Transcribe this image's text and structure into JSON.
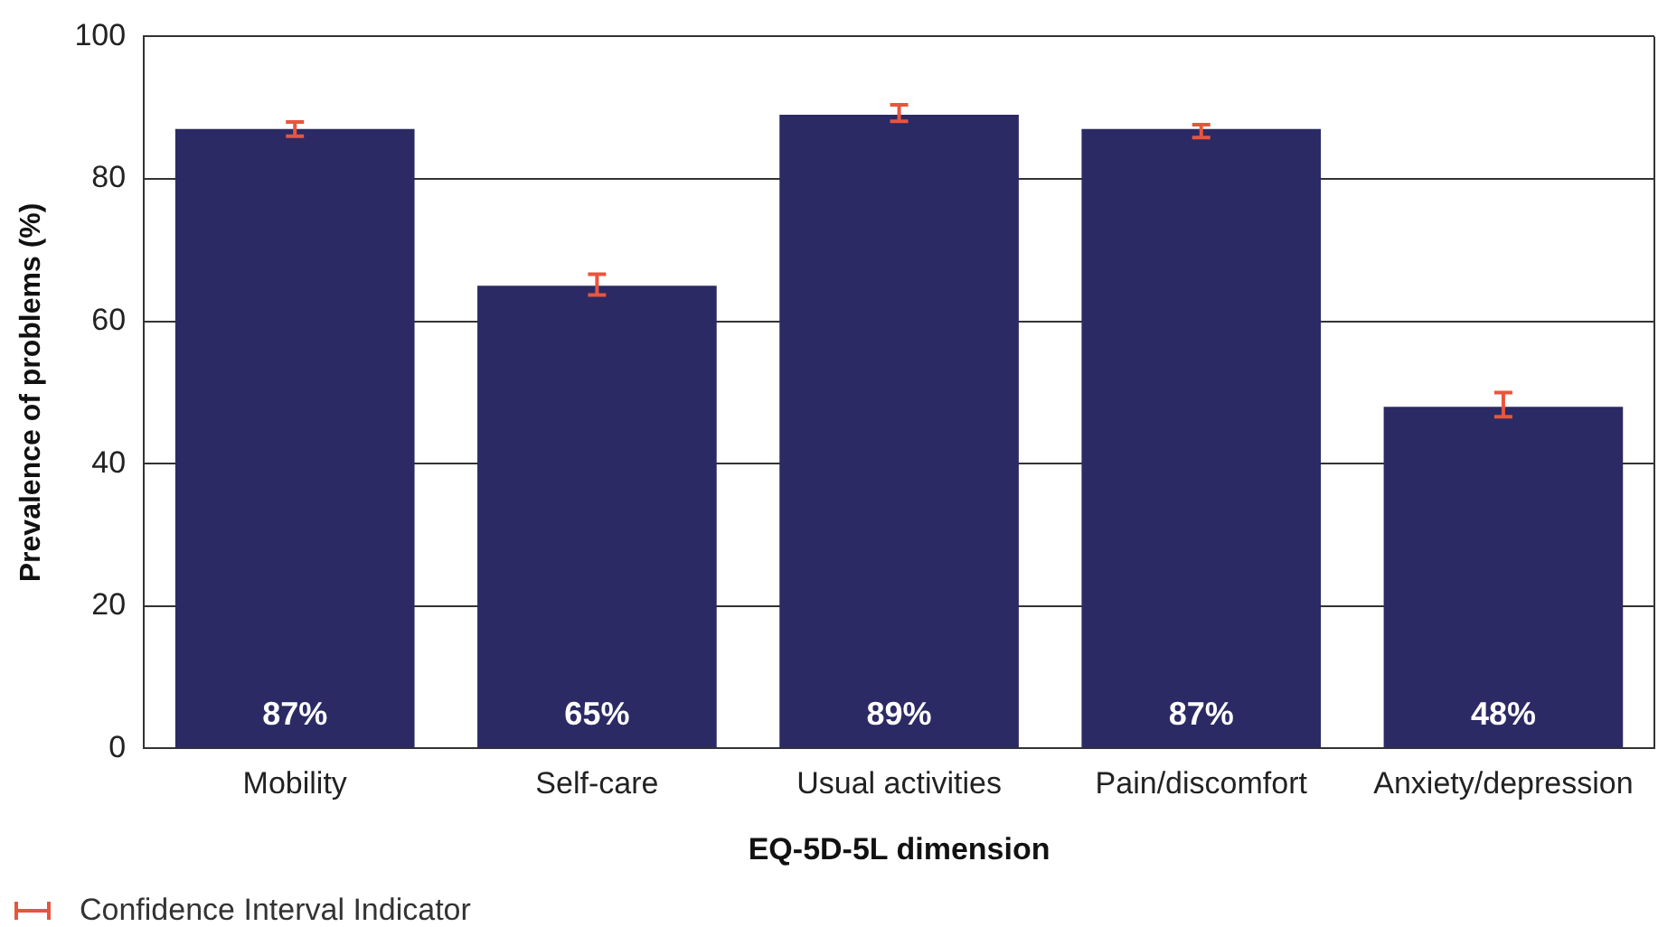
{
  "chart_data": {
    "type": "bar",
    "xlabel": "EQ-5D-5L dimension",
    "ylabel": "Prevalence of problems (%)",
    "categories": [
      "Mobility",
      "Self-care",
      "Usual activities",
      "Pain/discomfort",
      "Anxiety/depression"
    ],
    "values": [
      87,
      65,
      89,
      87,
      48
    ],
    "value_labels": [
      "87%",
      "65%",
      "89%",
      "87%",
      "48%"
    ],
    "errors": [
      [
        86,
        88
      ],
      [
        63.7,
        66.6
      ],
      [
        88.1,
        90.4
      ],
      [
        85.8,
        87.6
      ],
      [
        46.6,
        50
      ]
    ],
    "color": "#2b2a64",
    "ylim": [
      0,
      100
    ],
    "yticks": [
      0,
      20,
      40,
      60,
      80,
      100
    ],
    "grid": "y",
    "annotations": [
      "Confidence Interval Indicator"
    ]
  }
}
